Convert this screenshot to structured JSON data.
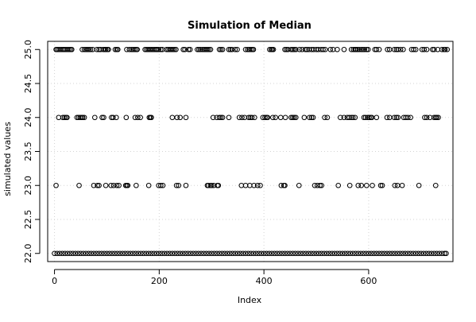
{
  "chart_data": {
    "type": "scatter",
    "title": "Simulation of Median",
    "xlabel": "Index",
    "ylabel": "simulated values",
    "xlim": [
      -13,
      761
    ],
    "ylim": [
      21.88,
      25.12
    ],
    "x_ticks": [
      0,
      200,
      400,
      600
    ],
    "y_ticks": [
      22.0,
      22.5,
      23.0,
      23.5,
      24.0,
      24.5,
      25.0
    ],
    "y_tick_labels": [
      "22.0",
      "22.5",
      "23.0",
      "23.5",
      "24.0",
      "24.5",
      "25.0"
    ],
    "grid": true,
    "marker": "open-circle",
    "point_color": "#000000",
    "series": [
      {
        "y": 25,
        "x": [
          3,
          5,
          8,
          11,
          14,
          17,
          19,
          22,
          25,
          28,
          31,
          33,
          53,
          57,
          60,
          63,
          66,
          69,
          73,
          81,
          85,
          88,
          93,
          96,
          98,
          101,
          103,
          116,
          119,
          121,
          138,
          143,
          147,
          150,
          153,
          156,
          158,
          173,
          176,
          179,
          182,
          185,
          188,
          191,
          194,
          196,
          199,
          203,
          206,
          214,
          217,
          220,
          223,
          226,
          229,
          232,
          246,
          249,
          256,
          259,
          273,
          276,
          279,
          283,
          286,
          289,
          292,
          295,
          298,
          315,
          318,
          321,
          333,
          336,
          339,
          345,
          349,
          365,
          369,
          372,
          375,
          378,
          380,
          411,
          414,
          416,
          418,
          440,
          443,
          446,
          452,
          455,
          458,
          461,
          468,
          473,
          479,
          482,
          486,
          491,
          495,
          500,
          504,
          509,
          513,
          517,
          527,
          532,
          540,
          553,
          567,
          571,
          574,
          576,
          579,
          582,
          586,
          589,
          592,
          596,
          599,
          612,
          615,
          620,
          636,
          640,
          649,
          653,
          656,
          661,
          666,
          682,
          686,
          690,
          702,
          706,
          711,
          722,
          725,
          732,
          740,
          744,
          746,
          750
        ]
      },
      {
        "y": 24,
        "x": [
          8,
          16,
          19,
          22,
          24,
          43,
          46,
          49,
          52,
          54,
          57,
          77,
          91,
          94,
          109,
          112,
          118,
          137,
          154,
          159,
          164,
          181,
          183,
          185,
          225,
          234,
          240,
          251,
          303,
          310,
          315,
          318,
          321,
          333,
          353,
          358,
          363,
          371,
          374,
          377,
          382,
          398,
          402,
          405,
          407,
          417,
          422,
          432,
          441,
          452,
          455,
          458,
          461,
          477,
          487,
          491,
          494,
          516,
          521,
          546,
          553,
          559,
          563,
          567,
          570,
          574,
          591,
          594,
          598,
          601,
          604,
          606,
          615,
          635,
          640,
          649,
          653,
          656,
          667,
          671,
          675,
          680,
          707,
          711,
          717,
          725,
          728,
          730,
          733
        ]
      },
      {
        "y": 23,
        "x": [
          3,
          47,
          75,
          82,
          85,
          98,
          108,
          113,
          119,
          123,
          136,
          138,
          140,
          156,
          180,
          199,
          203,
          207,
          233,
          237,
          251,
          292,
          294,
          298,
          300,
          304,
          311,
          313,
          357,
          365,
          373,
          381,
          388,
          393,
          433,
          438,
          440,
          467,
          497,
          502,
          507,
          510,
          542,
          564,
          580,
          586,
          596,
          607,
          623,
          626,
          650,
          655,
          664,
          696,
          728
        ]
      },
      {
        "y": 22,
        "x": [
          0,
          5,
          10,
          15,
          20,
          25,
          30,
          35,
          40,
          45,
          50,
          55,
          60,
          65,
          70,
          75,
          80,
          85,
          90,
          95,
          100,
          105,
          110,
          115,
          120,
          125,
          130,
          135,
          140,
          145,
          150,
          155,
          160,
          165,
          170,
          175,
          180,
          185,
          190,
          195,
          200,
          205,
          210,
          215,
          220,
          225,
          230,
          235,
          240,
          245,
          250,
          255,
          260,
          265,
          270,
          275,
          280,
          285,
          290,
          295,
          300,
          305,
          310,
          315,
          320,
          325,
          330,
          335,
          340,
          345,
          350,
          355,
          360,
          365,
          370,
          375,
          380,
          385,
          390,
          395,
          400,
          405,
          410,
          415,
          420,
          425,
          430,
          435,
          440,
          445,
          450,
          455,
          460,
          465,
          470,
          475,
          480,
          485,
          490,
          495,
          500,
          505,
          510,
          515,
          520,
          525,
          530,
          535,
          540,
          545,
          550,
          555,
          560,
          565,
          570,
          575,
          580,
          585,
          590,
          595,
          600,
          605,
          610,
          615,
          620,
          625,
          630,
          635,
          640,
          645,
          650,
          655,
          660,
          665,
          670,
          675,
          680,
          685,
          690,
          695,
          700,
          705,
          710,
          715,
          720,
          725,
          730,
          735,
          740,
          745,
          748
        ]
      }
    ]
  }
}
